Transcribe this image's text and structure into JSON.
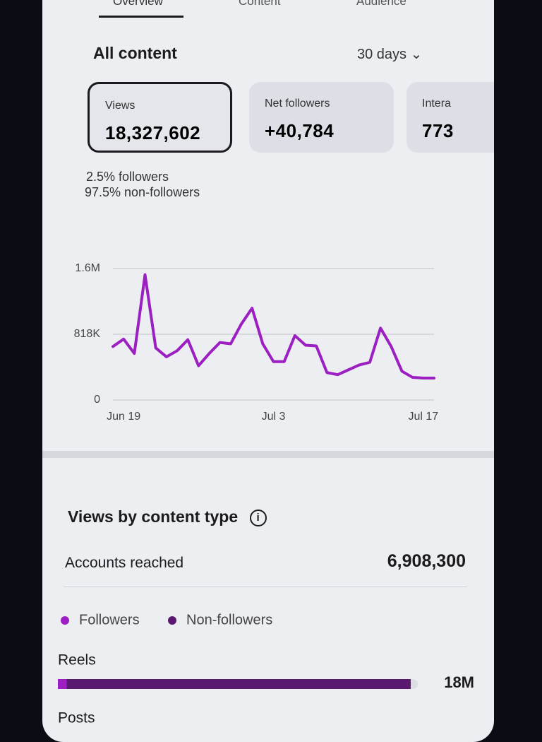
{
  "tabs": [
    "Overview",
    "Content",
    "Audience"
  ],
  "section": {
    "title": "All content",
    "range": "30 days"
  },
  "cards": [
    {
      "label": "Views",
      "value": "18,327,602"
    },
    {
      "label": "Net followers",
      "value": "+40,784"
    },
    {
      "label": "Intera",
      "value": "773"
    }
  ],
  "split": [
    "2.5% followers",
    "97.5% non-followers"
  ],
  "chart": {
    "type": "line",
    "color": "#9b1fc1",
    "categories": [
      null,
      "Jun 19",
      null,
      null,
      null,
      null,
      null,
      null,
      null,
      null,
      null,
      null,
      null,
      null,
      null,
      "Jul 3",
      null,
      null,
      null,
      null,
      null,
      null,
      null,
      null,
      null,
      null,
      null,
      null,
      null,
      "Jul 17",
      null
    ],
    "values": [
      665000,
      758000,
      579000,
      1559000,
      648000,
      537000,
      613000,
      750000,
      426000,
      579000,
      716000,
      699000,
      946000,
      1142000,
      699000,
      477000,
      477000,
      801000,
      682000,
      673000,
      341000,
      315000,
      375000,
      435000,
      469000,
      895000,
      665000,
      358000,
      281000,
      273000,
      273000
    ],
    "ylim": [
      0,
      1636000
    ],
    "yticks": [
      0,
      {
        "value": 818000,
        "label": "818K"
      },
      {
        "value": 1636000,
        "label": "1.6M"
      }
    ],
    "grid": true
  },
  "content_type": {
    "title": "Views by content type",
    "reached_label": "Accounts reached",
    "reached_value": "6,908,300",
    "legend": [
      {
        "name": "Followers",
        "color": "#9b1fc1"
      },
      {
        "name": "Non-followers",
        "color": "#5a1870"
      }
    ],
    "rows": [
      {
        "label": "Reels",
        "values": [
          450000,
          17550000
        ],
        "total": 18000000,
        "total_label": "18M"
      },
      {
        "label": "Posts"
      }
    ]
  }
}
